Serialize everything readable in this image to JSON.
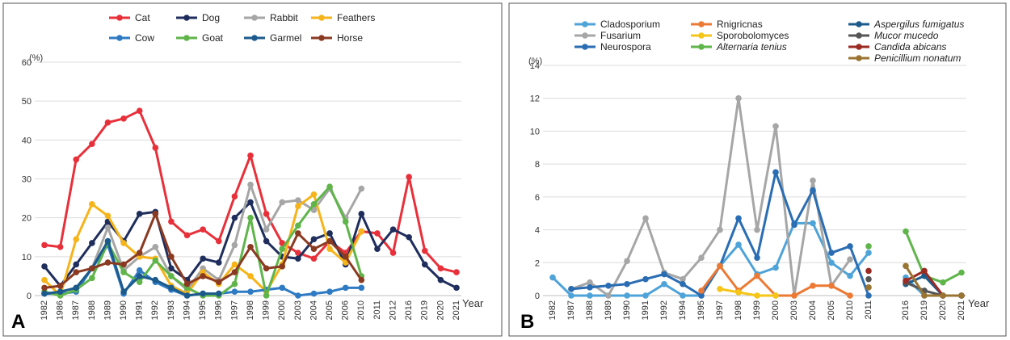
{
  "chart_data": [
    {
      "type": "line",
      "panel_label": "A",
      "ylabel": "(%)",
      "xlabel": "Year",
      "ylim": [
        0,
        60
      ],
      "yticks": [
        0,
        10,
        20,
        30,
        40,
        50,
        60
      ],
      "categories": [
        "1982",
        "1986",
        "1987",
        "1988",
        "1989",
        "1990",
        "1991",
        "1992",
        "1993",
        "1994",
        "1995",
        "1996",
        "1997",
        "1998",
        "1999",
        "2000",
        "2003",
        "2004",
        "2005",
        "2006",
        "2010",
        "2011",
        "2012",
        "2016",
        "2019",
        "2020",
        "2021"
      ],
      "legend_position": "top",
      "grid": "horizontal",
      "series": [
        {
          "name": "Cat",
          "color": "#e8303a",
          "values": [
            13,
            12.5,
            35,
            39,
            44.5,
            45.5,
            47.5,
            38,
            19,
            15.5,
            17,
            14,
            25.5,
            36,
            21,
            13.5,
            11,
            9.5,
            14,
            11,
            16.5,
            16,
            11,
            30.5,
            11.5,
            7,
            6
          ]
        },
        {
          "name": "Dog",
          "color": "#1f2e5c",
          "values": [
            7.5,
            2.5,
            8,
            13.5,
            19,
            14,
            21,
            21.5,
            7,
            4,
            9.5,
            8.5,
            20,
            24,
            14,
            10,
            9.5,
            14.5,
            16,
            8,
            21,
            12,
            17,
            15,
            8,
            4,
            2
          ]
        },
        {
          "name": "Rabbit",
          "color": "#a6a6a6",
          "values": [
            null,
            null,
            2,
            7,
            17.5,
            6.5,
            10,
            12.5,
            5,
            1.5,
            7,
            4,
            13,
            28.5,
            17,
            24,
            24.5,
            22,
            27.5,
            20,
            27.5,
            null,
            null,
            null,
            null,
            null,
            null
          ]
        },
        {
          "name": "Feathers",
          "color": "#f5b41a",
          "values": [
            4,
            0,
            14.5,
            23.5,
            20.5,
            13.5,
            10,
            9.5,
            2.5,
            0.5,
            6,
            3,
            8,
            5,
            1,
            8,
            23,
            26,
            12,
            8.5,
            16.5,
            null,
            null,
            null,
            null,
            null,
            null
          ]
        },
        {
          "name": "Cow",
          "color": "#2e7bc4",
          "values": [
            0.5,
            0.5,
            1,
            7,
            13,
            0.5,
            6.5,
            3.5,
            1.5,
            0,
            0.5,
            0.5,
            1,
            1,
            1.5,
            2,
            0,
            0.5,
            1,
            2,
            2,
            null,
            null,
            null,
            null,
            null,
            null
          ]
        },
        {
          "name": "Goat",
          "color": "#5fb54a",
          "values": [
            1,
            0,
            1.5,
            4.5,
            13.5,
            6,
            3.5,
            9,
            5,
            2,
            0,
            0,
            3,
            20,
            0,
            12,
            18,
            23.5,
            28,
            19,
            5,
            null,
            null,
            null,
            null,
            null,
            null
          ]
        },
        {
          "name": "Garmel",
          "color": "#1c5a8c",
          "values": [
            0.5,
            1,
            2,
            7,
            14,
            1,
            5,
            4,
            2,
            0,
            0.5,
            0.5,
            null,
            null,
            null,
            null,
            null,
            null,
            null,
            null,
            null,
            null,
            null,
            null,
            null,
            null,
            null
          ]
        },
        {
          "name": "Horse",
          "color": "#8b3a22",
          "values": [
            2,
            2.5,
            6,
            7,
            8.5,
            8,
            11,
            21,
            10,
            3,
            5,
            3.5,
            6,
            12.5,
            7,
            7.5,
            16,
            12,
            14,
            10,
            4,
            null,
            null,
            null,
            null,
            null,
            null
          ]
        }
      ]
    },
    {
      "type": "line",
      "panel_label": "B",
      "ylabel": "(%)",
      "xlabel": "Year",
      "ylim": [
        0,
        14
      ],
      "yticks": [
        0,
        2,
        4,
        6,
        8,
        10,
        12,
        14
      ],
      "categories": [
        "1982",
        "1987",
        "1988",
        "1989",
        "1990",
        "1991",
        "1992",
        "1994",
        "1995",
        "1997",
        "1998",
        "1999",
        "2000",
        "2003",
        "2004",
        "2005",
        "2010",
        "2011",
        "",
        "2016",
        "2019",
        "2020",
        "2021"
      ],
      "legend_position": "top",
      "grid": "horizontal",
      "series": [
        {
          "name": "Cladosporium",
          "color": "#4ea3d8",
          "italic": false,
          "values": [
            1.1,
            0,
            0,
            0,
            0,
            0,
            0.7,
            0,
            0,
            1.8,
            3.1,
            1.3,
            1.7,
            4.4,
            4.4,
            2,
            1.2,
            2.6,
            null,
            1.1,
            0,
            0,
            0
          ]
        },
        {
          "name": "Fusarium",
          "color": "#a6a6a6",
          "italic": false,
          "values": [
            null,
            0.4,
            0.8,
            0,
            2.1,
            4.7,
            1.4,
            1,
            2.3,
            4,
            12,
            4,
            10.3,
            0,
            7,
            0.6,
            2.2,
            null,
            null,
            null,
            null,
            null,
            null
          ]
        },
        {
          "name": "Neurospora",
          "color": "#2a6db3",
          "italic": false,
          "values": [
            null,
            0.4,
            0.5,
            0.6,
            0.7,
            1,
            1.3,
            0.7,
            0,
            1.8,
            4.7,
            2.3,
            7.5,
            4.3,
            6.4,
            2.6,
            3,
            0,
            null,
            null,
            null,
            null,
            null
          ]
        },
        {
          "name": "Rnigricnas",
          "color": "#ec7a35",
          "italic": false,
          "values": [
            null,
            null,
            null,
            null,
            null,
            null,
            null,
            null,
            0.3,
            1.8,
            0.3,
            1.2,
            0,
            0,
            0.6,
            0.6,
            0,
            null,
            null,
            null,
            null,
            null,
            null
          ]
        },
        {
          "name": "Sporobolomyces",
          "color": "#f5c518",
          "italic": false,
          "values": [
            null,
            null,
            null,
            null,
            null,
            null,
            null,
            null,
            null,
            0.4,
            0.2,
            0,
            0,
            null,
            null,
            null,
            null,
            null,
            null,
            null,
            null,
            null,
            null
          ]
        },
        {
          "name": "Alternaria tenius",
          "color": "#5fb54a",
          "italic": true,
          "values": [
            null,
            null,
            null,
            null,
            null,
            null,
            null,
            null,
            null,
            null,
            null,
            null,
            null,
            null,
            null,
            null,
            null,
            3,
            null,
            3.9,
            1.2,
            0.8,
            1.4
          ]
        },
        {
          "name": "Aspergilus fumigatus",
          "color": "#1c5a8c",
          "italic": true,
          "values": [
            null,
            null,
            null,
            null,
            null,
            null,
            null,
            null,
            null,
            null,
            null,
            null,
            null,
            null,
            null,
            null,
            null,
            null,
            null,
            0.7,
            1.2,
            0,
            0
          ]
        },
        {
          "name": "Mucor mucedo",
          "color": "#555555",
          "italic": true,
          "values": [
            null,
            null,
            null,
            null,
            null,
            null,
            null,
            null,
            null,
            null,
            null,
            null,
            null,
            null,
            null,
            null,
            null,
            1,
            null,
            0.8,
            0.3,
            0,
            0
          ]
        },
        {
          "name": "Candida abicans",
          "color": "#9b2a22",
          "italic": true,
          "values": [
            null,
            null,
            null,
            null,
            null,
            null,
            null,
            null,
            null,
            null,
            null,
            null,
            null,
            null,
            null,
            null,
            null,
            1.5,
            null,
            0.9,
            1.5,
            0,
            0
          ]
        },
        {
          "name": "Penicillium nonatum",
          "color": "#9a7432",
          "italic": true,
          "values": [
            null,
            null,
            null,
            null,
            null,
            null,
            null,
            null,
            null,
            null,
            null,
            null,
            null,
            null,
            null,
            null,
            null,
            0.5,
            null,
            1.8,
            0,
            0,
            0
          ]
        }
      ]
    }
  ]
}
